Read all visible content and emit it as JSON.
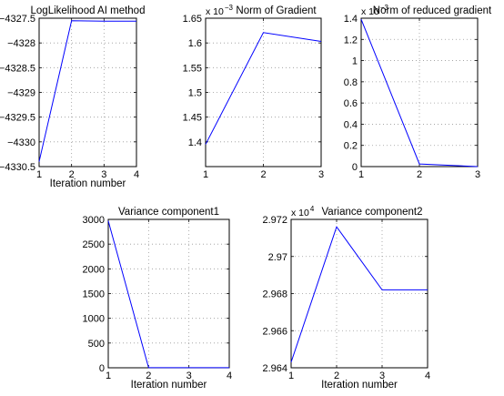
{
  "chart_data": [
    {
      "type": "line",
      "title": "LogLikelihood AI method",
      "xlabel": "Iteration number",
      "ylabel": "",
      "xlim": [
        1,
        4
      ],
      "ylim": [
        -4330.5,
        -4327.5
      ],
      "xticks": [
        "1",
        "2",
        "3",
        "4"
      ],
      "yticks": [
        "-4330.5",
        "-4330",
        "-4329.5",
        "-4329",
        "-4328.5",
        "-4328",
        "-4327.5"
      ],
      "grid": true,
      "color": "#0000ff",
      "x": [
        1,
        2,
        3,
        4
      ],
      "y": [
        -4330.4,
        -4327.55,
        -4327.56,
        -4327.56
      ]
    },
    {
      "type": "line",
      "title": "Norm of Gradient",
      "xlabel": "",
      "ylabel": "",
      "exponent": "x 10",
      "exponent_power": "-3",
      "xlim": [
        1,
        3
      ],
      "ylim": [
        1.35,
        1.65
      ],
      "xticks": [
        "1",
        "2",
        "3"
      ],
      "yticks": [
        "1.4",
        "1.45",
        "1.5",
        "1.55",
        "1.6",
        "1.65"
      ],
      "grid": true,
      "color": "#0000ff",
      "x": [
        1,
        2,
        3
      ],
      "y": [
        1.395,
        1.621,
        1.603
      ]
    },
    {
      "type": "line",
      "title": "Norm of reduced gradient",
      "xlabel": "",
      "ylabel": "",
      "exponent": "x 10",
      "exponent_power": "-3",
      "xlim": [
        1,
        3
      ],
      "ylim": [
        0,
        1.4
      ],
      "xticks": [
        "1",
        "2",
        "3"
      ],
      "yticks": [
        "0",
        "0.2",
        "0.4",
        "0.6",
        "0.8",
        "1",
        "1.2",
        "1.4"
      ],
      "grid": true,
      "color": "#0000ff",
      "x": [
        1,
        2,
        3
      ],
      "y": [
        1.39,
        0.025,
        0.0
      ]
    },
    {
      "type": "line",
      "title": "Variance component1",
      "xlabel": "Iteration number",
      "ylabel": "",
      "xlim": [
        1,
        4
      ],
      "ylim": [
        0,
        3000
      ],
      "xticks": [
        "1",
        "2",
        "3",
        "4"
      ],
      "yticks": [
        "0",
        "500",
        "1000",
        "1500",
        "2000",
        "2500",
        "3000"
      ],
      "grid": true,
      "color": "#0000ff",
      "x": [
        1,
        2,
        3,
        4
      ],
      "y": [
        2970,
        3,
        3,
        3
      ]
    },
    {
      "type": "line",
      "title": "Variance component2",
      "xlabel": "Iteration number",
      "ylabel": "",
      "exponent": "x 10",
      "exponent_power": "4",
      "xlim": [
        1,
        4
      ],
      "ylim": [
        2.964,
        2.972
      ],
      "xticks": [
        "1",
        "2",
        "3",
        "4"
      ],
      "yticks": [
        "2.964",
        "2.966",
        "2.968",
        "2.97",
        "2.972"
      ],
      "grid": true,
      "color": "#0000ff",
      "x": [
        1,
        2,
        3,
        4
      ],
      "y": [
        2.9643,
        2.9716,
        2.9682,
        2.9682
      ]
    }
  ]
}
